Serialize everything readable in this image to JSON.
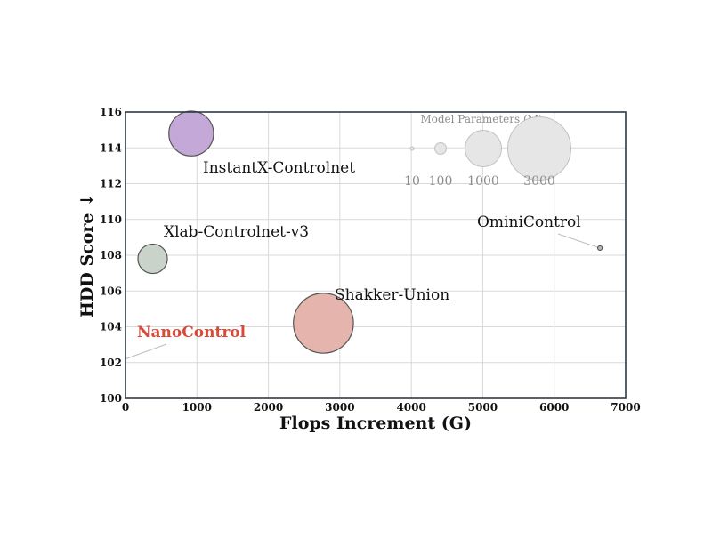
{
  "chart_data": {
    "type": "scatter",
    "title": "",
    "xlabel": "Flops Increment (G)",
    "ylabel": "HDD Score ↓",
    "xlim": [
      0,
      7000
    ],
    "ylim": [
      100,
      116
    ],
    "xticks": [
      0,
      1000,
      2000,
      3000,
      4000,
      5000,
      6000,
      7000
    ],
    "yticks": [
      100,
      102,
      104,
      106,
      108,
      110,
      112,
      114,
      116
    ],
    "grid": true,
    "points": [
      {
        "label": "InstantX-Controlnet",
        "x": 920,
        "y": 114.8,
        "params_m": 1500,
        "color": "#c4a8d8",
        "label_color": "#111111",
        "bold": false
      },
      {
        "label": "Xlab-Controlnet-v3",
        "x": 380,
        "y": 107.8,
        "params_m": 650,
        "color": "#c9d3c9",
        "label_color": "#111111",
        "bold": false
      },
      {
        "label": "Shakker-Union",
        "x": 2770,
        "y": 104.2,
        "params_m": 2700,
        "color": "#e4b4ad",
        "label_color": "#111111",
        "bold": false
      },
      {
        "label": "OminiControl",
        "x": 6640,
        "y": 108.4,
        "params_m": 15,
        "color": "#bbbbbb",
        "label_color": "#111111",
        "bold": false
      },
      {
        "label": "NanoControl",
        "x": 0,
        "y": 102.2,
        "params_m": 0,
        "color": "#e0473a",
        "label_color": "#d94a38",
        "bold": true
      }
    ],
    "size_legend": {
      "title": "Model Parameters (M)",
      "placement": "top-right",
      "entries": [
        {
          "label": "10",
          "params_m": 10
        },
        {
          "label": "100",
          "params_m": 100
        },
        {
          "label": "1000",
          "params_m": 1000
        },
        {
          "label": "3000",
          "params_m": 3000
        }
      ]
    }
  },
  "colors": {
    "grid": "#d9d9d9",
    "spine": "#2f3a45",
    "legend_text": "#8c8c8c",
    "bubble_edge": "#555555"
  }
}
